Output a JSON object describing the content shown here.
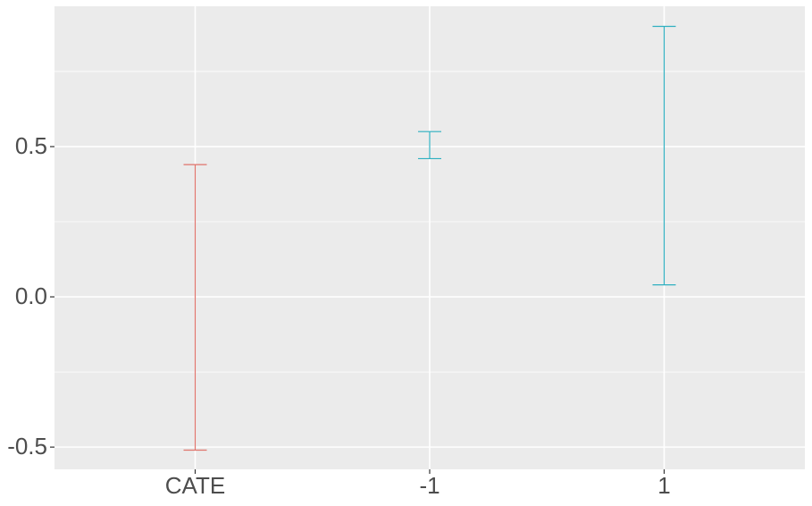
{
  "chart_data": {
    "type": "errorbar",
    "categories": [
      "CATE",
      "-1",
      "1"
    ],
    "lower": [
      -0.51,
      0.46,
      0.04
    ],
    "upper": [
      0.44,
      0.55,
      0.9
    ],
    "colors": [
      "#e0736b",
      "#2eafc0",
      "#2eafc0"
    ],
    "ylim": [
      -0.574,
      0.967
    ],
    "yticks": [
      {
        "value": -0.5,
        "label": "-0.5"
      },
      {
        "value": 0,
        "label": "0.0"
      },
      {
        "value": 0.5,
        "label": "0.5"
      }
    ],
    "minor_yticks": [
      -0.25,
      0.25,
      0.75
    ],
    "grid": true
  }
}
